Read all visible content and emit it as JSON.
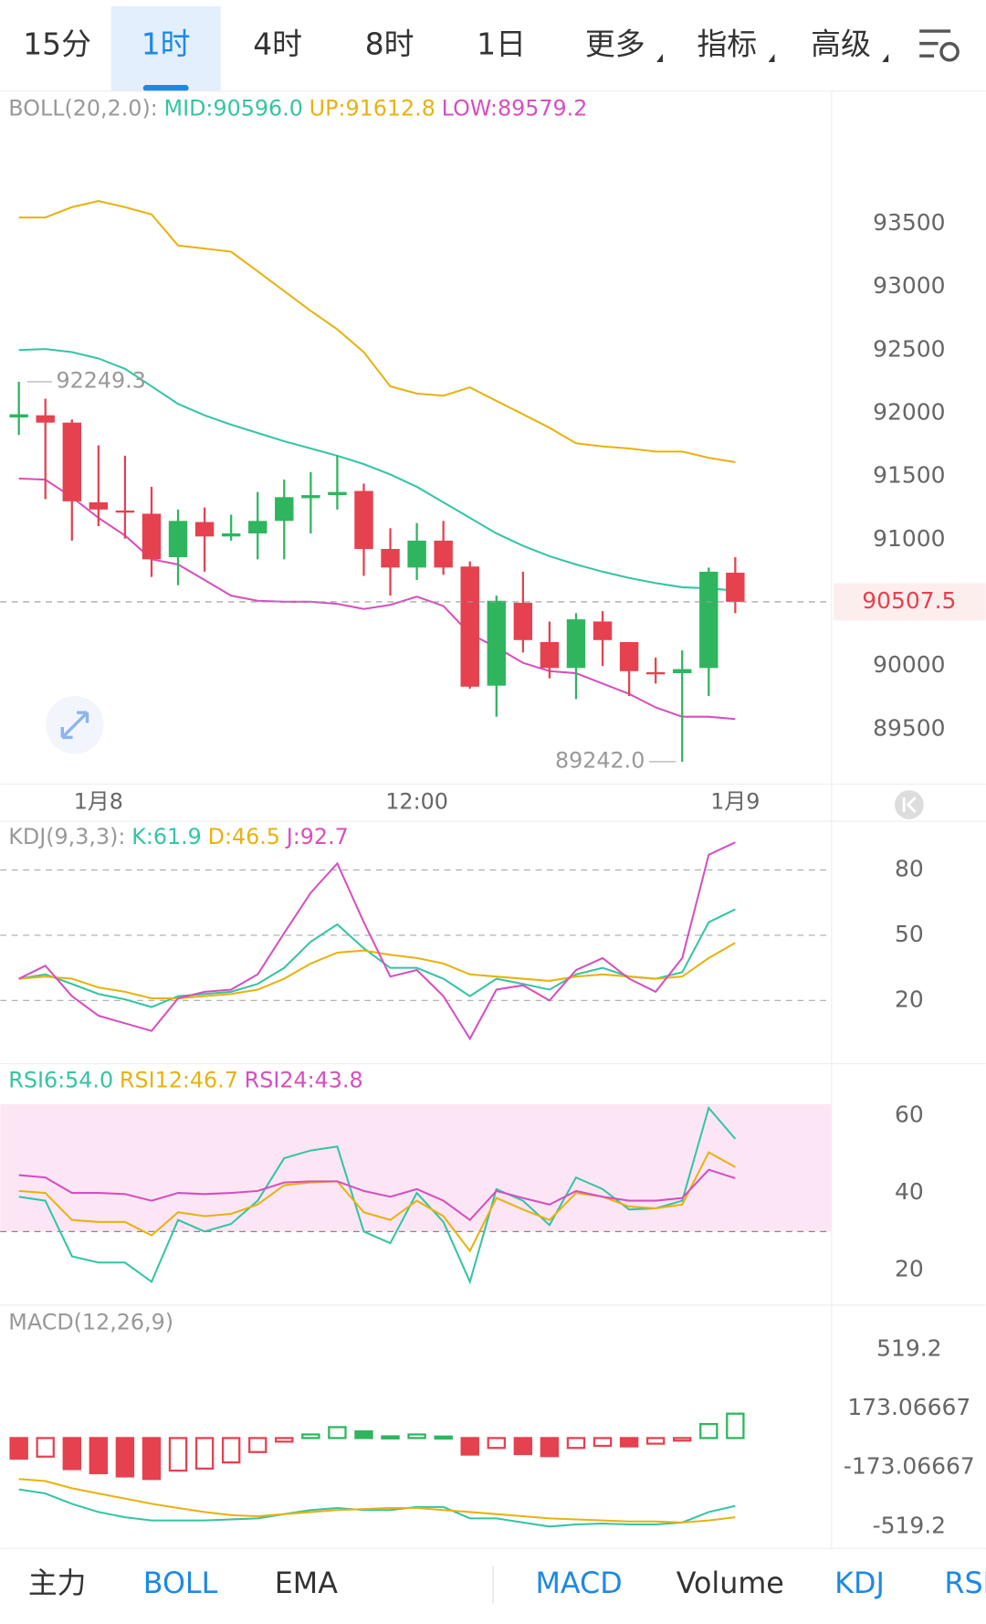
{
  "tabs": [
    "15分",
    "1时",
    "4时",
    "8时",
    "1日",
    "更多",
    "指标",
    "高级"
  ],
  "selected_tab": 1,
  "indicator_tabs": [
    "主力",
    "BOLL",
    "EMA",
    "MACD",
    "Volume",
    "KDJ",
    "RSI"
  ],
  "active_indicators": [
    1,
    3,
    5,
    6
  ],
  "chart_data": [
    {
      "type": "candlestick",
      "indicator": "BOLL(20,2.0):",
      "categories": [
        null,
        null,
        null,
        "1月8",
        null,
        null,
        null,
        null,
        null,
        null,
        null,
        null,
        null,
        null,
        null,
        "12:00",
        null,
        null,
        null,
        null,
        null,
        null,
        null,
        null,
        null,
        null,
        null,
        "1月9"
      ],
      "open": [
        91967,
        91984,
        91926,
        91295,
        91230,
        91205,
        90861,
        91139,
        91025,
        91049,
        91148,
        91328,
        91352,
        91385,
        90926,
        90779,
        90992,
        90787,
        89844,
        90500,
        90189,
        89984,
        90352,
        90189,
        89951,
        89943,
        89984,
        90738
      ],
      "high": [
        92249.3,
        92115,
        91951,
        91746,
        91664,
        91418,
        91238,
        91254,
        91197,
        91377,
        91475,
        91533,
        91664,
        91443,
        91090,
        91131,
        91148,
        90828,
        90557,
        90746,
        90352,
        90418,
        90434,
        90189,
        90066,
        90123,
        90779,
        90861
      ],
      "low": [
        91828,
        91320,
        90992,
        91107,
        91008,
        90705,
        90639,
        90746,
        90992,
        90844,
        90844,
        91049,
        91238,
        90713,
        90557,
        90680,
        90721,
        89820,
        89598,
        90107,
        89902,
        89738,
        90000,
        89762,
        89861,
        89242.0,
        89762,
        90418
      ],
      "close": [
        91992,
        91926,
        91303,
        91238,
        91221,
        90844,
        91148,
        91025,
        91049,
        91148,
        91336,
        91352,
        91377,
        90926,
        90779,
        90992,
        90779,
        89836,
        90516,
        90205,
        89984,
        90369,
        90205,
        89959,
        89934,
        89975,
        90746,
        90507.5
      ],
      "min_label": "89242.0",
      "up_color": "#2eb55e",
      "down_color": "#e5414f",
      "series": [
        {
          "name": "MID:90596.0",
          "color": "#34c4a4",
          "values": [
            92500,
            92508,
            92484,
            92434,
            92352,
            92213,
            92074,
            91984,
            91910,
            91844,
            91779,
            91721,
            91664,
            91598,
            91516,
            91418,
            91295,
            91172,
            91049,
            90951,
            90869,
            90803,
            90746,
            90697,
            90656,
            90623,
            90615,
            90596
          ]
        },
        {
          "name": "UP:91612.8",
          "color": "#e8b20f",
          "values": [
            93549,
            93549,
            93631,
            93680,
            93631,
            93574,
            93328,
            93303,
            93279,
            93123,
            92967,
            92811,
            92664,
            92484,
            92213,
            92156,
            92139,
            92205,
            92098,
            91992,
            91885,
            91762,
            91738,
            91721,
            91697,
            91697,
            91648,
            91612.8
          ]
        },
        {
          "name": "LOW:89579.2",
          "color": "#d64fbf",
          "values": [
            91484,
            91475,
            91336,
            91172,
            91033,
            90844,
            90803,
            90680,
            90557,
            90516,
            90508,
            90508,
            90492,
            90451,
            90484,
            90549,
            90475,
            90254,
            90148,
            90025,
            89959,
            89943,
            89861,
            89779,
            89672,
            89598,
            89598,
            89579.2
          ]
        }
      ],
      "ylim": [
        89082,
        94287
      ],
      "yticks": [
        89500,
        90000,
        90500,
        91000,
        91500,
        92000,
        92500,
        93000,
        93500
      ],
      "grid": false
    },
    {
      "type": "line",
      "indicator": "KDJ(9,3,3):",
      "series": [
        {
          "name": "K:61.9",
          "color": "#34c4a4",
          "values": [
            30,
            32,
            27.6,
            23,
            20.5,
            17,
            22,
            23,
            24,
            27.6,
            35,
            47,
            55,
            44,
            35,
            35,
            30,
            22,
            30,
            27.6,
            25,
            32,
            35,
            31,
            30,
            33,
            56,
            61.9
          ]
        },
        {
          "name": "D:46.5",
          "color": "#e8b20f",
          "values": [
            30,
            31,
            30,
            26,
            24,
            21,
            21,
            22,
            23,
            25,
            30,
            37,
            42,
            43,
            41,
            39.5,
            37,
            32,
            31,
            30,
            29,
            31,
            32,
            31,
            30,
            31,
            39.5,
            46.5
          ]
        },
        {
          "name": "J:92.7",
          "color": "#d64fbf",
          "values": [
            30,
            36,
            22,
            13,
            9.5,
            6,
            21,
            24,
            25,
            32,
            51,
            69.5,
            83,
            56,
            31,
            34,
            22,
            2.4,
            25,
            27,
            20,
            34,
            39.5,
            30,
            24,
            39.5,
            87,
            92.7
          ]
        }
      ],
      "ylim": [
        -8.1,
        85.7
      ],
      "yticks": [
        20,
        50,
        80
      ],
      "grid": true
    },
    {
      "type": "line",
      "series": [
        {
          "name": "RSI6:54.0",
          "color": "#34c4a4",
          "values": [
            39,
            38,
            23.6,
            22,
            22,
            17,
            33,
            30,
            32,
            38,
            49,
            51,
            52,
            30,
            27,
            40,
            32.5,
            17,
            41,
            38,
            31.7,
            44,
            41,
            35.7,
            36,
            38,
            62,
            54.0
          ]
        },
        {
          "name": "RSI12:46.7",
          "color": "#e8b20f",
          "values": [
            40.5,
            40,
            33,
            32.5,
            32.5,
            29,
            35,
            34,
            34.6,
            37,
            42,
            42.7,
            43,
            35,
            33,
            38,
            34,
            25,
            38.7,
            35.7,
            33,
            40,
            39,
            36.5,
            36,
            37,
            50.5,
            46.7
          ]
        },
        {
          "name": "RSI24:43.8",
          "color": "#d64fbf",
          "values": [
            44.6,
            44,
            40,
            40,
            39.7,
            38,
            40,
            39.7,
            40,
            40.5,
            42.7,
            43,
            43,
            40.5,
            39,
            41,
            38,
            33,
            40.5,
            38.7,
            37,
            40.5,
            39,
            38,
            38,
            38.7,
            46,
            43.8
          ]
        }
      ],
      "band": [
        30,
        63
      ],
      "band_color": "#fce6f5",
      "ylim": [
        11,
        63
      ],
      "yticks": [
        20,
        40,
        60
      ],
      "grid": false
    },
    {
      "type": "macd",
      "indicator": "MACD(12,26,9)",
      "values": [
        -121,
        -109,
        -182,
        -206,
        -225,
        -240,
        -191,
        -179,
        -143,
        -82,
        -21,
        21,
        64,
        39,
        10,
        21,
        9,
        -97,
        -58,
        -94,
        -106,
        -58,
        -46,
        -49,
        -33,
        -15,
        82,
        143
      ],
      "up_color": "#2eb55e",
      "down_color": "#e5414f",
      "series": [
        {
          "color": "#34c4a4",
          "values": [
            -301,
            -325,
            -386,
            -434,
            -464,
            -483,
            -483,
            -483,
            -477,
            -471,
            -446,
            -422,
            -410,
            -422,
            -422,
            -404,
            -404,
            -471,
            -471,
            -495,
            -519,
            -507,
            -501,
            -507,
            -507,
            -495,
            -434,
            -398
          ]
        },
        {
          "color": "#e8b20f",
          "values": [
            -240,
            -252,
            -294,
            -325,
            -355,
            -385,
            -410,
            -434,
            -452,
            -458,
            -446,
            -434,
            -422,
            -416,
            -410,
            -410,
            -422,
            -434,
            -446,
            -458,
            -471,
            -477,
            -483,
            -489,
            -489,
            -495,
            -483,
            -464
          ]
        }
      ],
      "ylim": [
        -647,
        768
      ],
      "yticks": [
        519.2,
        173.06667,
        -173.06667,
        -519.2
      ],
      "grid": false
    }
  ]
}
